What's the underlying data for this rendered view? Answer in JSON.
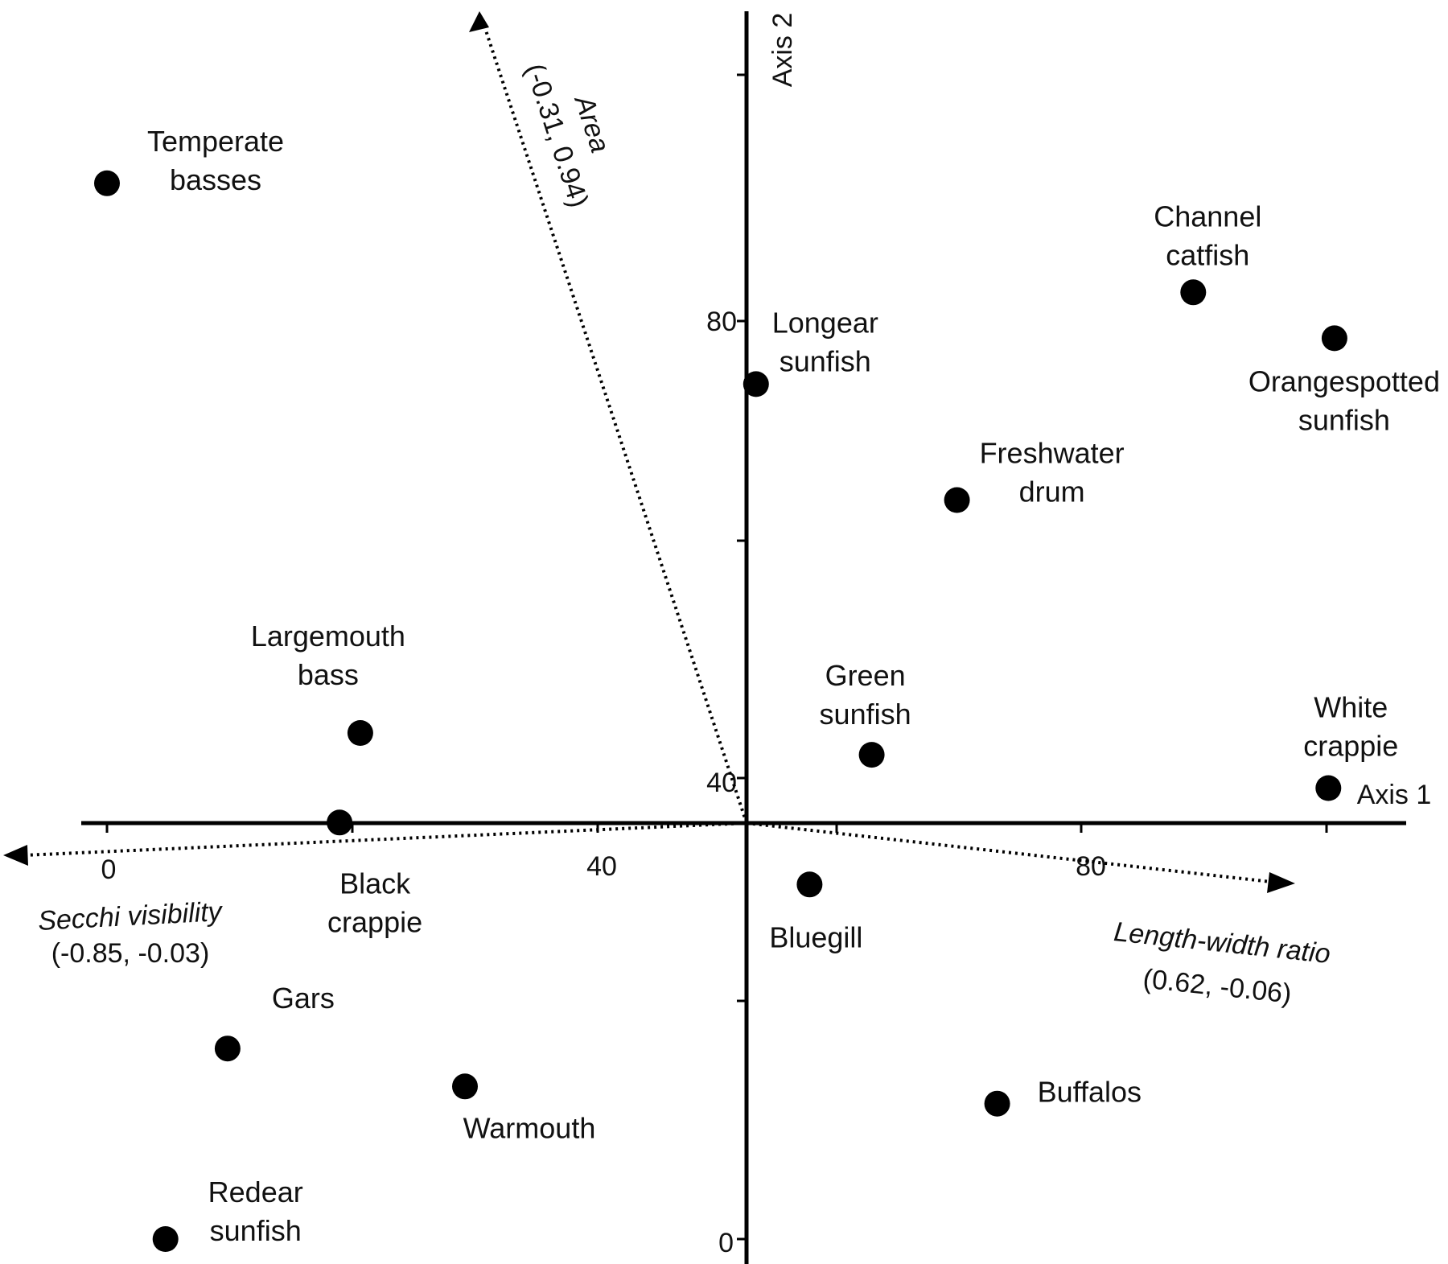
{
  "chart_data": {
    "type": "scatter",
    "axes": {
      "x": {
        "label": "Axis 1",
        "ticks": [
          0,
          40,
          80
        ]
      },
      "y": {
        "label": "Axis 2",
        "ticks": [
          0,
          40,
          80
        ]
      }
    },
    "points": [
      {
        "line1": "Temperate",
        "line2": "basses",
        "x": 0,
        "y": 92
      },
      {
        "line1": "Channel",
        "line2": "catfish",
        "x": 89.2,
        "y": 82.5
      },
      {
        "line1": "Orangespotted",
        "line2": "sunfish",
        "x": 100.8,
        "y": 78.5
      },
      {
        "line1": "Longear",
        "line2": "sunfish",
        "x": 53.3,
        "y": 74.5
      },
      {
        "line1": "Freshwater",
        "line2": "drum",
        "x": 69.8,
        "y": 64.4
      },
      {
        "line1": "Largemouth",
        "line2": "bass",
        "x": 20.8,
        "y": 44.1
      },
      {
        "line1": "Green",
        "line2": "sunfish",
        "x": 62.8,
        "y": 42.2
      },
      {
        "line1": "White",
        "line2": "crappie",
        "x": 100.3,
        "y": 39.3
      },
      {
        "line1": "Black",
        "line2": "crappie",
        "x": 19.1,
        "y": 36.3
      },
      {
        "line1": "Bluegill",
        "line2": "",
        "x": 57.7,
        "y": 30.9
      },
      {
        "line1": "Gars",
        "line2": "",
        "x": 9.9,
        "y": 16.6
      },
      {
        "line1": "Warmouth",
        "line2": "",
        "x": 29.4,
        "y": 13.3
      },
      {
        "line1": "Buffalos",
        "line2": "",
        "x": 73.1,
        "y": 11.8
      },
      {
        "line1": "Redear",
        "line2": "sunfish",
        "x": 4.8,
        "y": 0
      }
    ],
    "vectors": [
      {
        "name": "Area",
        "coords": "(-0.31, 0.94)"
      },
      {
        "name": "Secchi visibility",
        "coords": "(-0.85, -0.03)"
      },
      {
        "name": "Length-width ratio",
        "coords": "(0.62, -0.06)"
      }
    ],
    "grid": false
  }
}
